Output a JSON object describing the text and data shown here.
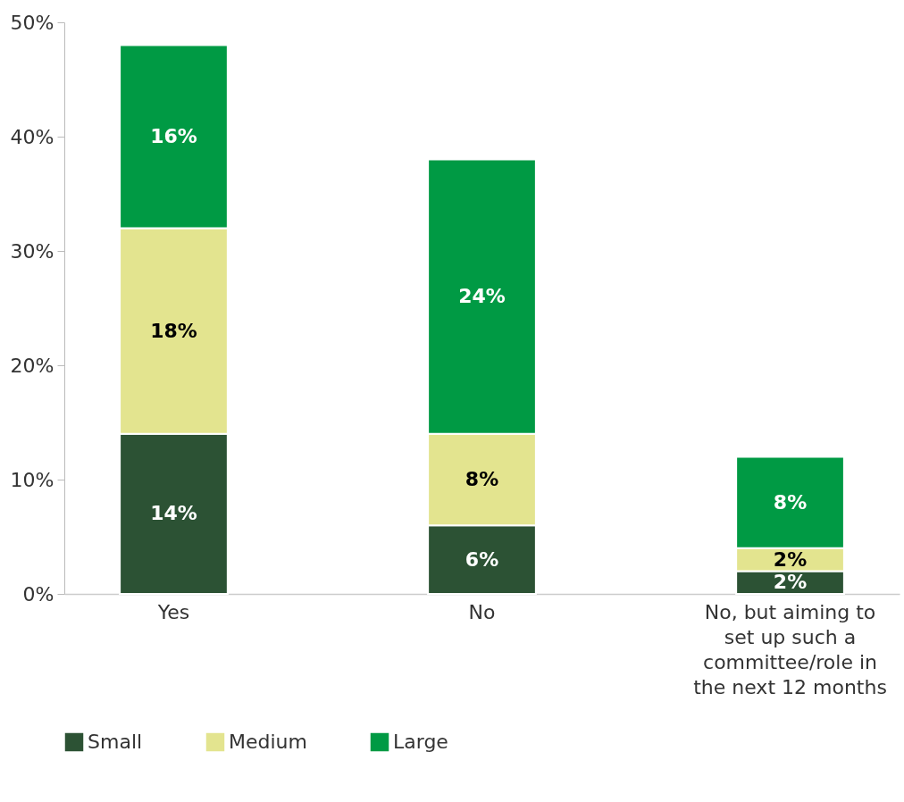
{
  "chart_data": {
    "type": "bar",
    "stacked": true,
    "categories": [
      "Yes",
      "No",
      "No, but aiming to set up such a committee/role in the next 12 months"
    ],
    "series": [
      {
        "name": "Small",
        "color": "#2c5234",
        "values": [
          14,
          6,
          2
        ],
        "value_labels": [
          "14%",
          "6%",
          "2%"
        ]
      },
      {
        "name": "Medium",
        "color": "#e3e48f",
        "values": [
          18,
          8,
          2
        ],
        "value_labels": [
          "18%",
          "8%",
          "2%"
        ]
      },
      {
        "name": "Large",
        "color": "#009a44",
        "values": [
          16,
          24,
          8
        ],
        "value_labels": [
          "16%",
          "24%",
          "8%"
        ]
      }
    ],
    "ylim": [
      0,
      50
    ],
    "yticks": [
      {
        "value": 0,
        "label": "0%"
      },
      {
        "value": 10,
        "label": "10%"
      },
      {
        "value": 20,
        "label": "20%"
      },
      {
        "value": 30,
        "label": "30%"
      },
      {
        "value": 40,
        "label": "40%"
      },
      {
        "value": 50,
        "label": "50%"
      }
    ],
    "grid": false,
    "legend": "bottom"
  }
}
